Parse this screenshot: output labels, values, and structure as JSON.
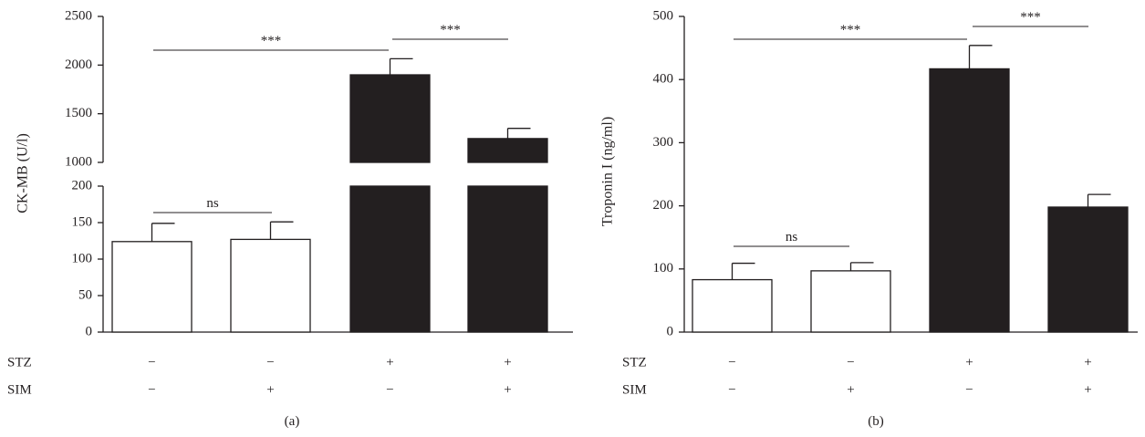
{
  "chart_data": [
    {
      "type": "bar",
      "panel_label": "(a)",
      "ylabel": "CK-MB (U/l)",
      "broken_axis": true,
      "lower_segment": {
        "ylim": [
          0,
          200
        ],
        "ticks": [
          0,
          50,
          100,
          150,
          200
        ]
      },
      "upper_segment": {
        "ylim": [
          1000,
          2500
        ],
        "ticks": [
          1000,
          1500,
          2000,
          2500
        ]
      },
      "conditions": [
        {
          "name": "STZ",
          "values": [
            "−",
            "−",
            "+",
            "+"
          ]
        },
        {
          "name": "SIM",
          "values": [
            "−",
            "+",
            "−",
            "+"
          ]
        }
      ],
      "bar_fill": [
        "#ffffff",
        "#ffffff",
        "#231f20",
        "#231f20"
      ],
      "values": [
        124,
        127,
        1900,
        1245
      ],
      "errors": [
        25,
        24,
        165,
        105
      ],
      "significance": [
        {
          "from": 0,
          "to": 1,
          "label": "ns"
        },
        {
          "from": 0,
          "to": 2,
          "label": "***"
        },
        {
          "from": 2,
          "to": 3,
          "label": "***"
        }
      ]
    },
    {
      "type": "bar",
      "panel_label": "(b)",
      "ylabel": "Troponin I (ng/ml)",
      "ylim": [
        0,
        500
      ],
      "ticks": [
        0,
        100,
        200,
        300,
        400,
        500
      ],
      "conditions": [
        {
          "name": "STZ",
          "values": [
            "−",
            "−",
            "+",
            "+"
          ]
        },
        {
          "name": "SIM",
          "values": [
            "−",
            "+",
            "−",
            "+"
          ]
        }
      ],
      "bar_fill": [
        "#ffffff",
        "#ffffff",
        "#231f20",
        "#231f20"
      ],
      "values": [
        83,
        97,
        417,
        198
      ],
      "errors": [
        26,
        13,
        37,
        20
      ],
      "significance": [
        {
          "from": 0,
          "to": 1,
          "label": "ns"
        },
        {
          "from": 0,
          "to": 2,
          "label": "***"
        },
        {
          "from": 2,
          "to": 3,
          "label": "***"
        }
      ]
    }
  ]
}
